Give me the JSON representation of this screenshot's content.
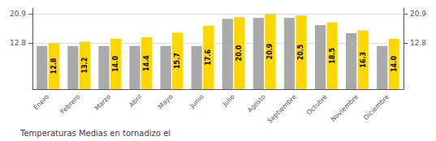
{
  "chart_data": {
    "type": "bar",
    "title": "Temperaturas Medias en tornadizo el",
    "categories": [
      "Enero",
      "Febrero",
      "Marzo",
      "Abril",
      "Mayo",
      "Junio",
      "Julio",
      "Agosto",
      "Septiembre",
      "Octubre",
      "Noviembre",
      "Diciembre"
    ],
    "series": [
      {
        "color": "#AAAAAA",
        "values": [
          12.0,
          12.0,
          12.0,
          12.0,
          12.0,
          12.0,
          19.5,
          19.8,
          19.8,
          17.8,
          15.5,
          12.0
        ]
      },
      {
        "color": "#FFD700",
        "values": [
          12.8,
          13.2,
          14.0,
          14.4,
          15.7,
          17.6,
          20.0,
          20.9,
          20.5,
          18.5,
          16.3,
          14.0
        ],
        "value_labels": [
          "12.8",
          "13.2",
          "14.0",
          "14.4",
          "15.7",
          "17.6",
          "20.0",
          "20.9",
          "20.5",
          "18.5",
          "16.3",
          "14.0"
        ],
        "data_labels": true
      }
    ],
    "ylim": [
      0,
      22.5
    ],
    "yticks": [
      12.8,
      20.9
    ],
    "y2lim": [
      0,
      22.5
    ],
    "y2ticks": [
      12.8,
      20.9
    ],
    "grid": true
  }
}
